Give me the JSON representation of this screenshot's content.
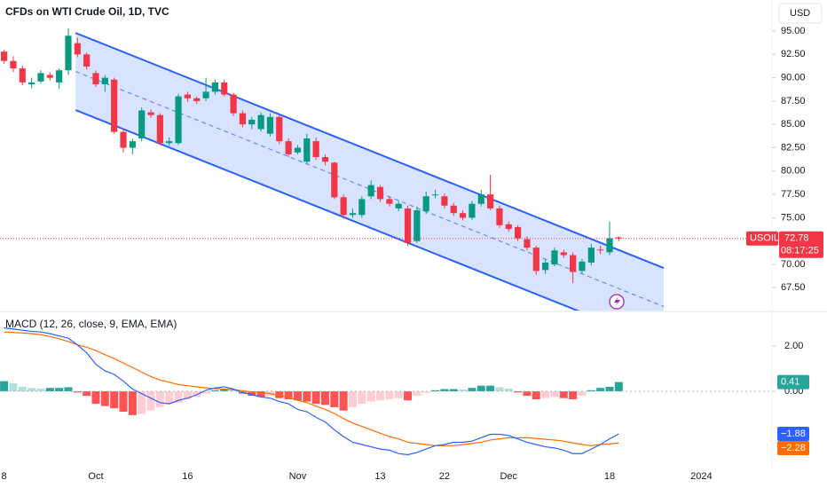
{
  "chart_data": [
    {
      "type": "candlestick",
      "title": "CFDs on WTI Crude Oil, 1D, TVC",
      "currency": "USD",
      "symbol": "USOIL",
      "last_price": 72.78,
      "countdown": "08:17:25",
      "up_color": "#089981",
      "down_color": "#f23645",
      "xlim": [
        -0.445,
        83.7
      ],
      "ylim": [
        65.06,
        98.33
      ],
      "yticks": [
        {
          "value": 95,
          "label": "95.00"
        },
        {
          "value": 92.5,
          "label": "92.50"
        },
        {
          "value": 90,
          "label": "90.00"
        },
        {
          "value": 87.5,
          "label": "87.50"
        },
        {
          "value": 85,
          "label": "85.00"
        },
        {
          "value": 82.5,
          "label": "82.50"
        },
        {
          "value": 80,
          "label": "80.00"
        },
        {
          "value": 77.5,
          "label": "77.50"
        },
        {
          "value": 75,
          "label": "75.00"
        },
        {
          "value": 72.5,
          "label": "72.50"
        },
        {
          "value": 70,
          "label": "70.00"
        },
        {
          "value": 67.5,
          "label": "67.50"
        }
      ],
      "open": [
        92.8,
        91.8,
        91.0,
        89.3,
        89.6,
        90.3,
        89.5,
        90.8,
        93.7,
        92.5,
        90.5,
        89.3,
        89.8,
        84.2,
        82.5,
        83.5,
        86.3,
        86.0,
        83.0,
        83.0,
        88.2,
        87.8,
        87.8,
        88.5,
        89.5,
        88.2,
        86.2,
        85.0,
        84.5,
        84.0,
        85.8,
        83.2,
        82.0,
        81.0,
        83.2,
        81.5,
        80.9,
        77.2,
        75.3,
        75.3,
        77.3,
        78.3,
        77.0,
        76.0,
        76.0,
        72.5,
        75.7,
        77.5,
        77.3,
        76.3,
        75.5,
        75.0,
        76.5,
        77.5,
        76.0,
        74.3,
        74.0,
        72.7,
        71.8,
        69.4,
        70.0,
        71.3,
        71.0,
        69.3,
        70.2,
        71.6,
        71.3,
        72.9
      ],
      "high": [
        93.0,
        92.3,
        91.3,
        90.0,
        90.8,
        90.6,
        91.0,
        95.3,
        94.3,
        92.7,
        90.8,
        90.3,
        90.0,
        84.6,
        83.5,
        86.8,
        86.6,
        86.2,
        83.6,
        88.3,
        88.5,
        88.0,
        90.0,
        89.8,
        89.8,
        88.4,
        86.5,
        85.8,
        86.3,
        86.2,
        86.0,
        83.5,
        82.8,
        84.0,
        83.6,
        81.8,
        81.0,
        77.5,
        76.0,
        77.3,
        79.0,
        78.5,
        77.3,
        76.8,
        76.3,
        76.2,
        77.8,
        78.0,
        77.6,
        76.6,
        75.8,
        76.8,
        78.0,
        79.6,
        76.3,
        74.6,
        74.2,
        73.0,
        72.0,
        70.5,
        71.8,
        71.6,
        71.3,
        70.6,
        72.2,
        72.0,
        74.6,
        73.0
      ],
      "low": [
        91.5,
        90.6,
        89.2,
        88.9,
        89.4,
        89.7,
        88.8,
        90.3,
        92.2,
        90.9,
        89.0,
        88.5,
        84.0,
        82.0,
        81.8,
        83.2,
        85.7,
        82.8,
        82.7,
        82.8,
        87.4,
        87.2,
        87.5,
        88.2,
        88.0,
        85.9,
        84.7,
        84.5,
        84.2,
        83.7,
        82.9,
        81.5,
        81.8,
        80.8,
        81.2,
        80.6,
        77.0,
        74.9,
        75.0,
        75.0,
        77.0,
        76.7,
        76.2,
        75.7,
        72.0,
        72.3,
        75.4,
        77.1,
        76.0,
        75.2,
        74.7,
        74.8,
        76.2,
        75.8,
        73.9,
        73.5,
        72.5,
        71.5,
        68.9,
        69.0,
        69.8,
        70.7,
        68.0,
        69.0,
        69.9,
        71.1,
        71.0,
        72.5
      ],
      "close": [
        91.8,
        91.0,
        89.5,
        89.5,
        90.5,
        90.0,
        90.8,
        94.5,
        92.5,
        91.2,
        89.3,
        90.0,
        84.2,
        82.5,
        83.2,
        86.5,
        86.0,
        83.0,
        83.2,
        88.0,
        87.8,
        87.5,
        88.5,
        89.5,
        88.2,
        86.2,
        85.0,
        85.5,
        86.0,
        85.8,
        83.2,
        81.8,
        82.5,
        83.5,
        81.5,
        81.0,
        77.2,
        75.3,
        75.5,
        77.0,
        78.5,
        77.0,
        76.5,
        76.5,
        72.3,
        75.8,
        77.3,
        77.5,
        76.3,
        75.5,
        75.0,
        76.5,
        77.5,
        76.0,
        74.2,
        73.8,
        72.8,
        71.8,
        69.3,
        70.2,
        71.5,
        71.0,
        69.2,
        70.3,
        71.8,
        71.5,
        72.8,
        72.78
      ],
      "channel": {
        "color": "#2962ff",
        "x": [
          7.8,
          71.9
        ],
        "upper": [
          94.8,
          69.62
        ],
        "lower": [
          86.54,
          61.36
        ]
      }
    },
    {
      "type": "macd",
      "title": "MACD (12, 26, close, 9, EMA, EMA)",
      "xlim": [
        -0.445,
        83.7
      ],
      "ylim": [
        -3.29,
        3.49
      ],
      "yticks": [
        {
          "value": 2,
          "label": "2.00"
        },
        {
          "value": 0,
          "label": "0.00"
        }
      ],
      "xticks": [
        {
          "value": 0,
          "label": "8"
        },
        {
          "value": 10,
          "label": "Oct"
        },
        {
          "value": 20,
          "label": "16"
        },
        {
          "value": 32,
          "label": "Nov"
        },
        {
          "value": 41,
          "label": "13"
        },
        {
          "value": 48,
          "label": "22"
        },
        {
          "value": 55,
          "label": "Dec"
        },
        {
          "value": 66,
          "label": "18"
        },
        {
          "value": 76,
          "label": "2024"
        }
      ],
      "histogram": {
        "colors": [
          "#26a69a",
          "#b2dfdb",
          "#ffcdd2",
          "#ff5252"
        ],
        "values": [
          0.45,
          0.35,
          0.2,
          0.15,
          0.12,
          0.15,
          0.15,
          0.18,
          -0.05,
          -0.2,
          -0.55,
          -0.65,
          -0.75,
          -0.9,
          -1.05,
          -1.0,
          -0.85,
          -0.7,
          -0.55,
          -0.5,
          -0.35,
          -0.25,
          -0.1,
          0.05,
          0.1,
          0.05,
          -0.1,
          -0.2,
          -0.25,
          -0.2,
          -0.3,
          -0.35,
          -0.4,
          -0.45,
          -0.55,
          -0.6,
          -0.7,
          -0.85,
          -0.7,
          -0.55,
          -0.45,
          -0.4,
          -0.35,
          -0.3,
          -0.4,
          -0.2,
          -0.05,
          0.05,
          0.1,
          0.1,
          0.08,
          0.15,
          0.25,
          0.25,
          0.18,
          0.12,
          -0.05,
          -0.2,
          -0.35,
          -0.3,
          -0.25,
          -0.3,
          -0.35,
          -0.2,
          0.05,
          0.15,
          0.2,
          0.41
        ],
        "last_label": "0.41"
      },
      "macd": {
        "color": "#2962ff",
        "values": [
          2.8,
          2.75,
          2.7,
          2.65,
          2.62,
          2.55,
          2.45,
          2.35,
          2.05,
          1.7,
          1.2,
          0.9,
          0.75,
          0.45,
          0.1,
          -0.1,
          -0.3,
          -0.5,
          -0.55,
          -0.4,
          -0.3,
          -0.15,
          0.05,
          0.15,
          0.2,
          0.1,
          -0.05,
          -0.15,
          -0.25,
          -0.3,
          -0.45,
          -0.55,
          -0.8,
          -0.9,
          -1.15,
          -1.35,
          -1.7,
          -2.0,
          -2.25,
          -2.35,
          -2.45,
          -2.55,
          -2.6,
          -2.75,
          -2.8,
          -2.7,
          -2.55,
          -2.4,
          -2.35,
          -2.25,
          -2.25,
          -2.2,
          -2.05,
          -1.9,
          -1.9,
          -1.95,
          -2.1,
          -2.25,
          -2.35,
          -2.45,
          -2.5,
          -2.6,
          -2.75,
          -2.75,
          -2.55,
          -2.35,
          -2.1,
          -1.88
        ],
        "last_label": "−1.88"
      },
      "signal": {
        "color": "#ff6d00",
        "values": [
          2.62,
          2.6,
          2.58,
          2.55,
          2.5,
          2.42,
          2.32,
          2.2,
          2.05,
          1.95,
          1.8,
          1.62,
          1.45,
          1.25,
          1.05,
          0.85,
          0.65,
          0.5,
          0.4,
          0.3,
          0.25,
          0.2,
          0.15,
          0.12,
          0.1,
          0.07,
          0.03,
          -0.02,
          -0.05,
          -0.1,
          -0.18,
          -0.25,
          -0.4,
          -0.5,
          -0.65,
          -0.8,
          -0.98,
          -1.2,
          -1.4,
          -1.55,
          -1.7,
          -1.85,
          -2.0,
          -2.1,
          -2.25,
          -2.3,
          -2.35,
          -2.4,
          -2.4,
          -2.4,
          -2.35,
          -2.3,
          -2.25,
          -2.15,
          -2.1,
          -2.05,
          -2.05,
          -2.05,
          -2.08,
          -2.12,
          -2.15,
          -2.2,
          -2.28,
          -2.35,
          -2.4,
          -2.35,
          -2.32,
          -2.28
        ],
        "last_label": "−2.28"
      }
    }
  ]
}
